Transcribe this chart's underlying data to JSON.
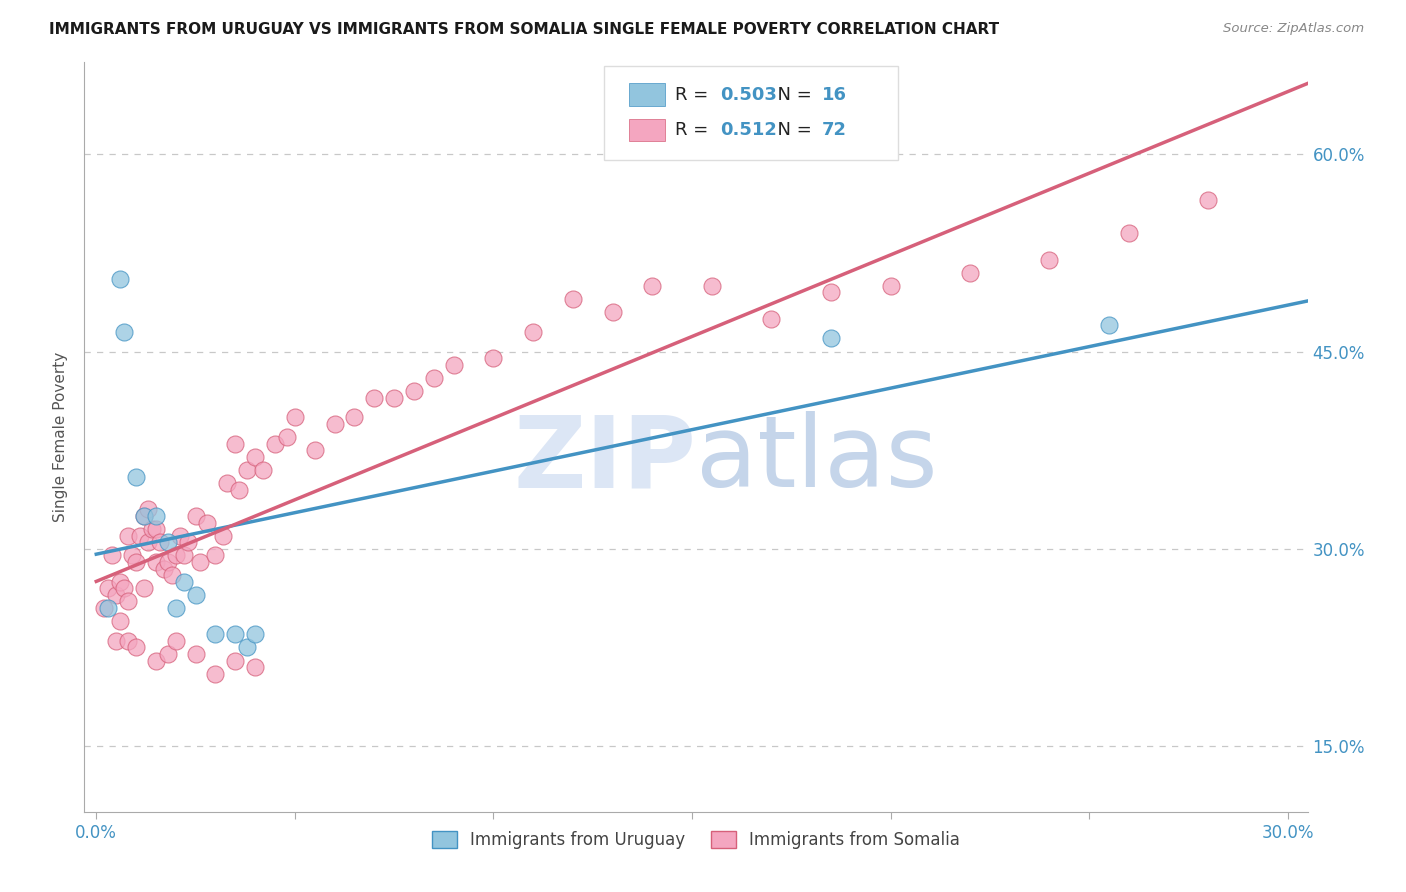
{
  "title": "IMMIGRANTS FROM URUGUAY VS IMMIGRANTS FROM SOMALIA SINGLE FEMALE POVERTY CORRELATION CHART",
  "source": "Source: ZipAtlas.com",
  "ylabel": "Single Female Poverty",
  "legend_label1": "Immigrants from Uruguay",
  "legend_label2": "Immigrants from Somalia",
  "R1": "0.503",
  "N1": "16",
  "R2": "0.512",
  "N2": "72",
  "color_uruguay": "#92c5de",
  "color_somalia": "#f4a6c0",
  "line_color_uruguay": "#4393c3",
  "line_color_somalia": "#d6607a",
  "background_color": "#ffffff",
  "watermark_zip": "ZIP",
  "watermark_atlas": "atlas",
  "ytick_positions": [
    0.15,
    0.3,
    0.45,
    0.6
  ],
  "ytick_labels": [
    "15.0%",
    "30.0%",
    "45.0%",
    "60.0%"
  ],
  "xtick_positions": [
    0.0,
    0.05,
    0.1,
    0.15,
    0.2,
    0.25,
    0.3
  ],
  "xtick_labels": [
    "0.0%",
    "",
    "",
    "",
    "",
    "",
    "30.0%"
  ],
  "xlim": [
    -0.003,
    0.305
  ],
  "ylim": [
    0.1,
    0.67
  ],
  "uruguay_x": [
    0.003,
    0.006,
    0.007,
    0.01,
    0.012,
    0.015,
    0.018,
    0.02,
    0.022,
    0.025,
    0.03,
    0.035,
    0.038,
    0.04,
    0.185,
    0.255
  ],
  "uruguay_y": [
    0.255,
    0.505,
    0.465,
    0.355,
    0.325,
    0.325,
    0.305,
    0.255,
    0.275,
    0.265,
    0.235,
    0.235,
    0.225,
    0.235,
    0.46,
    0.47
  ],
  "somalia_x": [
    0.002,
    0.003,
    0.004,
    0.005,
    0.006,
    0.006,
    0.007,
    0.008,
    0.008,
    0.009,
    0.01,
    0.011,
    0.012,
    0.012,
    0.013,
    0.013,
    0.014,
    0.015,
    0.015,
    0.016,
    0.017,
    0.018,
    0.019,
    0.02,
    0.021,
    0.022,
    0.023,
    0.025,
    0.026,
    0.028,
    0.03,
    0.032,
    0.033,
    0.035,
    0.036,
    0.038,
    0.04,
    0.042,
    0.045,
    0.048,
    0.05,
    0.055,
    0.06,
    0.065,
    0.07,
    0.075,
    0.08,
    0.085,
    0.09,
    0.1,
    0.11,
    0.12,
    0.13,
    0.14,
    0.155,
    0.17,
    0.185,
    0.2,
    0.22,
    0.24,
    0.26,
    0.28,
    0.005,
    0.008,
    0.01,
    0.015,
    0.018,
    0.02,
    0.025,
    0.03,
    0.035,
    0.04
  ],
  "somalia_y": [
    0.255,
    0.27,
    0.295,
    0.265,
    0.245,
    0.275,
    0.27,
    0.31,
    0.26,
    0.295,
    0.29,
    0.31,
    0.27,
    0.325,
    0.33,
    0.305,
    0.315,
    0.315,
    0.29,
    0.305,
    0.285,
    0.29,
    0.28,
    0.295,
    0.31,
    0.295,
    0.305,
    0.325,
    0.29,
    0.32,
    0.295,
    0.31,
    0.35,
    0.38,
    0.345,
    0.36,
    0.37,
    0.36,
    0.38,
    0.385,
    0.4,
    0.375,
    0.395,
    0.4,
    0.415,
    0.415,
    0.42,
    0.43,
    0.44,
    0.445,
    0.465,
    0.49,
    0.48,
    0.5,
    0.5,
    0.475,
    0.495,
    0.5,
    0.51,
    0.52,
    0.54,
    0.565,
    0.23,
    0.23,
    0.225,
    0.215,
    0.22,
    0.23,
    0.22,
    0.205,
    0.215,
    0.21
  ]
}
